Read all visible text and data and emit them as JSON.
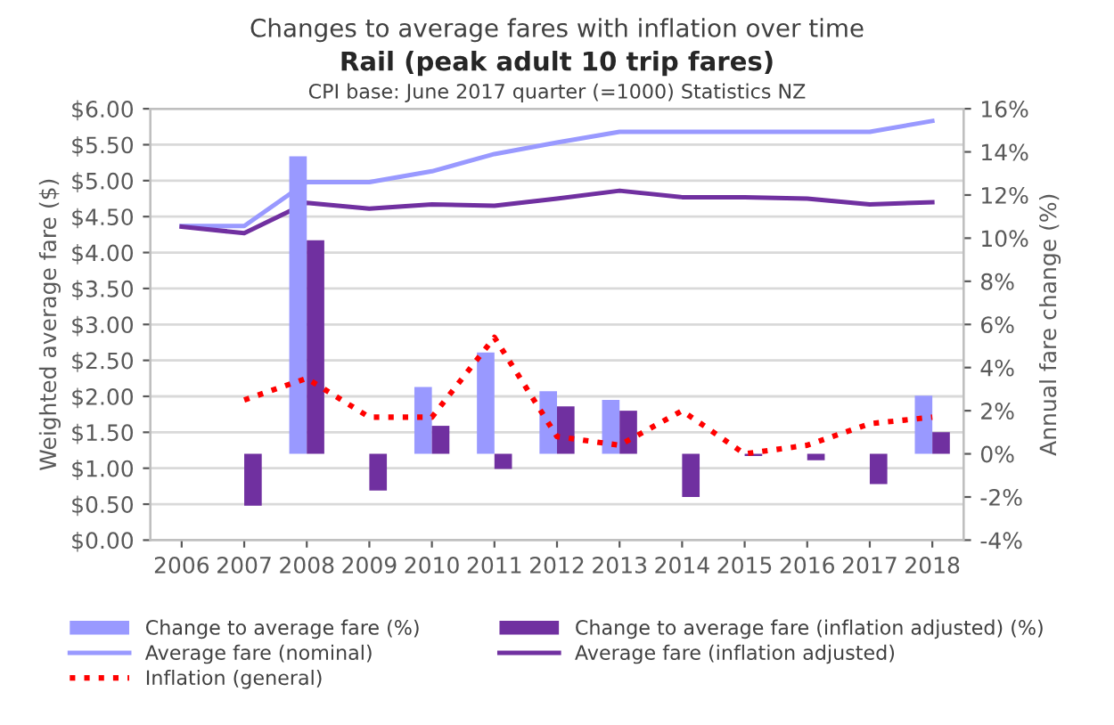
{
  "chart_data": {
    "type": "bar",
    "title": "Changes to average fares with inflation over time",
    "subtitle": "Rail (peak adult 10 trip fares)",
    "annotations": [
      "CPI base: June 2017 quarter (=1000) Statistics NZ"
    ],
    "ylabel": "Weighted average fare ($)",
    "y2label": "Annual fare change (%)",
    "categories": [
      "2006",
      "2007",
      "2008",
      "2009",
      "2010",
      "2011",
      "2012",
      "2013",
      "2014",
      "2015",
      "2016",
      "2017",
      "2018"
    ],
    "series": [
      {
        "name": "Change to average fare (%)",
        "axis": "y2",
        "color": "#9999ff",
        "values": [
          null,
          null,
          13.8,
          null,
          3.1,
          4.7,
          2.9,
          2.5,
          null,
          null,
          null,
          null,
          2.7
        ]
      },
      {
        "name": "Change to average fare (inflation adjusted) (%)",
        "axis": "y2",
        "color": "#7030a0",
        "values": [
          null,
          -2.4,
          9.9,
          -1.7,
          1.3,
          -0.7,
          2.2,
          2.0,
          -2.0,
          -0.1,
          -0.3,
          -1.4,
          1.0
        ]
      },
      {
        "name": "Average fare (nominal)",
        "type": "line",
        "axis": "y",
        "color": "#9999ff",
        "line_style": "solid",
        "values": [
          4.37,
          4.37,
          4.98,
          4.98,
          5.13,
          5.37,
          5.53,
          5.68,
          5.68,
          5.68,
          5.68,
          5.68,
          5.83
        ]
      },
      {
        "name": "Average fare (inflation adjusted)",
        "type": "line",
        "axis": "y",
        "color": "#7030a0",
        "line_style": "solid",
        "values": [
          4.36,
          4.27,
          4.69,
          4.61,
          4.67,
          4.65,
          4.75,
          4.86,
          4.77,
          4.77,
          4.75,
          4.67,
          4.7
        ]
      },
      {
        "name": "Inflation (general)",
        "type": "line",
        "axis": "y2",
        "color": "#ff0000",
        "line_style": "dotted",
        "values": [
          null,
          2.5,
          3.5,
          1.7,
          1.7,
          5.4,
          0.8,
          0.4,
          2.0,
          0.0,
          0.4,
          1.4,
          1.7
        ]
      }
    ],
    "ylim": [
      0,
      6
    ],
    "yticks": [
      {
        "value": 0,
        "label": "$0.00"
      },
      {
        "value": 0.5,
        "label": "$0.50"
      },
      {
        "value": 1,
        "label": "$1.00"
      },
      {
        "value": 1.5,
        "label": "$1.50"
      },
      {
        "value": 2,
        "label": "$2.00"
      },
      {
        "value": 2.5,
        "label": "$2.50"
      },
      {
        "value": 3,
        "label": "$3.00"
      },
      {
        "value": 3.5,
        "label": "$3.50"
      },
      {
        "value": 4,
        "label": "$4.00"
      },
      {
        "value": 4.5,
        "label": "$4.50"
      },
      {
        "value": 5,
        "label": "$5.00"
      },
      {
        "value": 5.5,
        "label": "$5.50"
      },
      {
        "value": 6,
        "label": "$6.00"
      }
    ],
    "y2lim": [
      -4,
      16
    ],
    "y2ticks": [
      {
        "value": -4,
        "label": "-4%"
      },
      {
        "value": -2,
        "label": "-2%"
      },
      {
        "value": 0,
        "label": "0%"
      },
      {
        "value": 2,
        "label": "2%"
      },
      {
        "value": 4,
        "label": "4%"
      },
      {
        "value": 6,
        "label": "6%"
      },
      {
        "value": 8,
        "label": "8%"
      },
      {
        "value": 10,
        "label": "10%"
      },
      {
        "value": 12,
        "label": "12%"
      },
      {
        "value": 14,
        "label": "14%"
      },
      {
        "value": 16,
        "label": "16%"
      }
    ],
    "grid": "y",
    "legend": "bottom"
  }
}
